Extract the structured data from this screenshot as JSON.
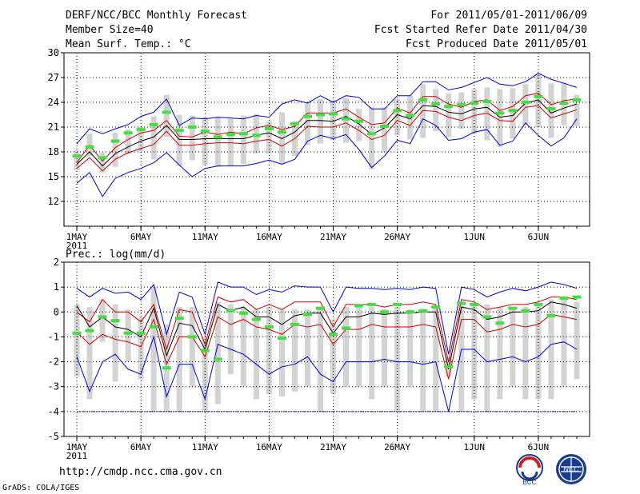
{
  "header": {
    "title": "DERF/NCC/BCC Monthly Forecast",
    "member": "Member Size=40",
    "variable": "Mean Surf. Temp.: °C",
    "period": "For 2011/05/01-2011/06/09",
    "started": "Fcst Started Refer Date 2011/04/30",
    "produced": "Fcst Produced Date 2011/05/01"
  },
  "footer": {
    "url": "http://cmdp.ncc.cma.gov.cn",
    "grads": "GrADS: COLA/IGES",
    "logo_bcc": "BCC",
    "logo_ncc": "NCC"
  },
  "colors": {
    "mean": "#000000",
    "spread": "#cc0000",
    "range": "#0000cc",
    "bar": "#d3d3d3",
    "obs": "#44dd44",
    "grid": "#000000"
  },
  "chart_data": [
    {
      "type": "line",
      "title": "Mean Surf. Temp.: °C",
      "xlabel": "",
      "ylabel": "",
      "x_ticks": [
        1,
        6,
        11,
        16,
        21,
        26,
        32,
        37
      ],
      "x_labels": [
        "1MAY",
        "6MAY",
        "11MAY",
        "16MAY",
        "21MAY",
        "26MAY",
        "1JUN",
        "6JUN"
      ],
      "x_sub": "2011",
      "xlim": [
        0,
        41
      ],
      "ylim": [
        9,
        30
      ],
      "y_ticks": [
        12,
        15,
        18,
        21,
        24,
        27,
        30
      ],
      "y_labels": [
        "12",
        "15",
        "18",
        "21",
        "24",
        "27",
        "30"
      ],
      "x": [
        1,
        2,
        3,
        4,
        5,
        6,
        7,
        8,
        9,
        10,
        11,
        12,
        13,
        14,
        15,
        16,
        17,
        18,
        19,
        20,
        21,
        22,
        23,
        24,
        25,
        26,
        27,
        28,
        29,
        30,
        31,
        32,
        33,
        34,
        35,
        36,
        37,
        38,
        39,
        40
      ],
      "series": [
        {
          "name": "max",
          "values": [
            19.0,
            20.8,
            20.2,
            20.8,
            21.3,
            22.3,
            22.8,
            24.4,
            21.2,
            22.1,
            22.0,
            22.2,
            22.1,
            22.0,
            22.4,
            22.2,
            23.8,
            24.3,
            23.9,
            24.8,
            24.0,
            24.8,
            24.6,
            23.2,
            23.2,
            24.8,
            24.8,
            26.5,
            26.5,
            25.5,
            25.8,
            26.4,
            27.0,
            26.2,
            26.0,
            26.5,
            27.5,
            26.8,
            26.3,
            25.8
          ]
        },
        {
          "name": "upper",
          "values": [
            16.7,
            18.8,
            16.9,
            18.5,
            19.5,
            20.3,
            20.6,
            21.8,
            19.9,
            19.8,
            20.4,
            20.1,
            20.4,
            20.2,
            20.9,
            21.2,
            20.7,
            21.1,
            22.7,
            22.7,
            22.7,
            23.2,
            22.2,
            21.3,
            21.5,
            23.3,
            22.7,
            24.7,
            24.7,
            23.8,
            23.4,
            24.1,
            24.3,
            23.0,
            23.5,
            24.8,
            25.1,
            23.7,
            24.2,
            24.4
          ]
        },
        {
          "name": "mean",
          "values": [
            16.5,
            18.0,
            16.3,
            17.8,
            18.6,
            19.3,
            19.8,
            21.2,
            19.5,
            19.5,
            19.6,
            19.6,
            19.6,
            19.6,
            20.0,
            20.3,
            19.6,
            20.4,
            21.8,
            21.8,
            21.7,
            22.3,
            21.4,
            20.1,
            20.9,
            22.5,
            22.0,
            23.6,
            23.5,
            22.8,
            22.6,
            23.2,
            23.4,
            22.2,
            22.4,
            23.9,
            24.3,
            22.7,
            23.3,
            23.8
          ]
        },
        {
          "name": "lower",
          "values": [
            16.0,
            17.3,
            15.7,
            17.1,
            17.9,
            18.4,
            18.9,
            20.5,
            18.8,
            18.8,
            19.0,
            19.1,
            19.1,
            19.0,
            19.3,
            19.5,
            18.7,
            19.6,
            21.1,
            21.0,
            21.0,
            21.5,
            20.6,
            19.5,
            20.0,
            21.8,
            21.2,
            23.0,
            22.9,
            22.2,
            21.8,
            22.4,
            22.7,
            21.8,
            21.7,
            23.4,
            23.6,
            22.1,
            22.6,
            23.1
          ]
        },
        {
          "name": "min",
          "values": [
            14.2,
            15.5,
            12.6,
            14.8,
            15.5,
            16.0,
            16.7,
            17.9,
            16.4,
            15.0,
            16.0,
            16.3,
            16.3,
            16.3,
            16.6,
            17.0,
            16.5,
            17.1,
            19.3,
            20.0,
            19.6,
            20.1,
            18.3,
            16.1,
            17.5,
            19.4,
            19.0,
            22.0,
            21.2,
            19.4,
            19.6,
            20.4,
            20.7,
            18.8,
            19.3,
            21.5,
            20.0,
            18.7,
            19.7,
            22.0
          ]
        },
        {
          "name": "obs",
          "values": [
            17.5,
            18.6,
            17.3,
            19.3,
            20.3,
            20.7,
            21.3,
            22.8,
            20.6,
            21.0,
            20.5,
            19.8,
            20.1,
            20.2,
            20.0,
            20.8,
            20.4,
            21.4,
            22.3,
            22.5,
            22.6,
            22.0,
            21.7,
            20.2,
            21.1,
            23.0,
            22.4,
            24.3,
            23.8,
            23.5,
            23.7,
            23.9,
            24.1,
            22.7,
            23.0,
            24.0,
            24.7,
            23.2,
            23.9,
            24.3
          ]
        }
      ],
      "bars": {
        "low": [
          15.8,
          17.5,
          15.5,
          16.2,
          17.7,
          18.1,
          17.1,
          19.8,
          16.3,
          17.0,
          16.4,
          16.2,
          16.3,
          16.5,
          17.8,
          17.8,
          16.5,
          17.5,
          18.8,
          19.0,
          19.4,
          19.1,
          19.3,
          15.9,
          17.9,
          20.0,
          19.5,
          19.7,
          20.5,
          19.8,
          20.8,
          20.2,
          19.4,
          18.6,
          19.6,
          21.3,
          21.0,
          19.7,
          21.2,
          21.1
        ],
        "high": [
          18.2,
          20.2,
          17.9,
          20.3,
          20.7,
          21.0,
          22.3,
          24.9,
          22.5,
          22.4,
          22.2,
          22.2,
          22.0,
          22.4,
          22.6,
          21.7,
          22.8,
          21.7,
          24.0,
          24.4,
          24.2,
          24.5,
          23.2,
          23.4,
          23.4,
          24.4,
          24.8,
          26.2,
          25.6,
          25.1,
          25.2,
          25.6,
          25.8,
          25.6,
          25.7,
          26.2,
          27.5,
          26.3,
          26.4,
          24.9
        ]
      }
    },
    {
      "type": "line",
      "title": "Prec.: log(mm/d)",
      "xlabel": "",
      "ylabel": "",
      "x_ticks": [
        1,
        6,
        11,
        16,
        21,
        26,
        32,
        37
      ],
      "x_labels": [
        "1MAY",
        "6MAY",
        "11MAY",
        "16MAY",
        "21MAY",
        "26MAY",
        "1JUN",
        "6JUN"
      ],
      "x_sub": "2011",
      "xlim": [
        0,
        41
      ],
      "ylim": [
        -5,
        2
      ],
      "y_ticks": [
        -5,
        -4,
        -3,
        -2,
        -1,
        0,
        1,
        2
      ],
      "y_labels": [
        "-5",
        "-4",
        "-3",
        "-2",
        "-1",
        "0",
        "1",
        "2"
      ],
      "baseline": -4,
      "x": [
        1,
        2,
        3,
        4,
        5,
        6,
        7,
        8,
        9,
        10,
        11,
        12,
        13,
        14,
        15,
        16,
        17,
        18,
        19,
        20,
        21,
        22,
        23,
        24,
        25,
        26,
        27,
        28,
        29,
        30,
        31,
        32,
        33,
        34,
        35,
        36,
        37,
        38,
        39,
        40
      ],
      "series": [
        {
          "name": "max",
          "values": [
            0.95,
            0.6,
            0.95,
            0.75,
            0.8,
            0.5,
            1.1,
            -0.9,
            0.8,
            0.6,
            -0.9,
            1.2,
            1.0,
            1.0,
            0.7,
            0.9,
            0.8,
            1.05,
            1.0,
            1.0,
            0.0,
            1.0,
            0.95,
            0.95,
            0.9,
            0.95,
            0.9,
            1.0,
            0.95,
            -1.7,
            1.0,
            0.9,
            0.6,
            0.8,
            0.95,
            0.85,
            1.0,
            1.2,
            1.1,
            0.95
          ]
        },
        {
          "name": "upper",
          "values": [
            0.0,
            -0.4,
            0.5,
            0.0,
            0.0,
            -0.4,
            0.3,
            -1.5,
            0.1,
            0.0,
            -1.3,
            0.6,
            0.4,
            0.5,
            0.1,
            0.3,
            0.1,
            0.4,
            0.4,
            0.4,
            -0.6,
            0.3,
            0.3,
            0.3,
            0.2,
            0.3,
            0.3,
            0.4,
            0.3,
            -2.0,
            0.5,
            0.4,
            0.1,
            0.2,
            0.3,
            0.3,
            0.4,
            0.6,
            0.6,
            0.5
          ]
        },
        {
          "name": "mean",
          "values": [
            0.25,
            -0.6,
            -0.2,
            -0.6,
            -0.7,
            -1.0,
            0.15,
            -1.75,
            -0.45,
            -0.55,
            -1.5,
            0.3,
            0.05,
            0.2,
            -0.2,
            -0.2,
            -0.5,
            -0.15,
            -0.05,
            -0.05,
            -0.85,
            -0.2,
            -0.2,
            -0.05,
            -0.1,
            -0.05,
            -0.05,
            0.0,
            0.0,
            -2.3,
            0.2,
            0.1,
            -0.3,
            -0.2,
            0.0,
            0.0,
            0.05,
            0.4,
            0.3,
            0.15
          ]
        },
        {
          "name": "lower",
          "values": [
            -0.8,
            -1.3,
            -0.9,
            -1.1,
            -1.2,
            -1.4,
            -0.3,
            -2.1,
            -1.0,
            -1.0,
            -1.8,
            -0.2,
            -0.5,
            -0.3,
            -0.6,
            -0.7,
            -0.9,
            -0.5,
            -0.6,
            -0.5,
            -1.3,
            -0.7,
            -0.7,
            -0.5,
            -0.6,
            -0.6,
            -0.6,
            -0.5,
            -0.6,
            -2.7,
            -0.3,
            -0.3,
            -0.8,
            -0.7,
            -0.5,
            -0.6,
            -0.5,
            -0.1,
            -0.2,
            -0.3
          ]
        },
        {
          "name": "min",
          "values": [
            -1.8,
            -3.2,
            -2.0,
            -1.7,
            -2.3,
            -2.5,
            -1.0,
            -3.4,
            -2.1,
            -2.1,
            -3.5,
            -1.3,
            -1.5,
            -1.7,
            -2.1,
            -2.5,
            -2.2,
            -2.1,
            -1.8,
            -2.5,
            -2.8,
            -2.0,
            -2.0,
            -2.0,
            -1.9,
            -2.0,
            -2.0,
            -2.1,
            -2.0,
            -4.0,
            -1.5,
            -1.5,
            -2.0,
            -1.9,
            -1.8,
            -2.0,
            -1.8,
            -1.3,
            -1.2,
            -1.5
          ]
        },
        {
          "name": "obs",
          "values": [
            -0.85,
            -0.75,
            -0.2,
            -0.35,
            -0.85,
            -0.85,
            -0.6,
            -2.25,
            -0.25,
            -1.0,
            -1.55,
            -1.9,
            0.05,
            -0.05,
            -0.3,
            -0.6,
            -1.05,
            -0.5,
            -0.1,
            0.15,
            -0.9,
            -0.65,
            0.25,
            0.3,
            0.0,
            0.3,
            0.0,
            0.05,
            0.2,
            -2.2,
            0.35,
            0.3,
            -0.2,
            -0.45,
            0.15,
            0.05,
            0.3,
            -0.15,
            0.55,
            0.6
          ]
        },
        {
          "name": "floor",
          "values": [
            -4,
            -4,
            -4,
            -4,
            -4,
            -4,
            -4,
            -4,
            -4,
            -4,
            -4,
            -4,
            -4,
            -4,
            -4,
            -4,
            -4,
            -4,
            -4,
            -4,
            -4,
            -4,
            -4,
            -4,
            -4,
            -4,
            -4,
            -4,
            -4,
            -4,
            -4,
            -4,
            -4,
            -4,
            -4,
            -4,
            -4,
            -4,
            -4,
            -4
          ]
        }
      ],
      "bars": {
        "low": [
          -2.6,
          -3.5,
          -1.2,
          -2.8,
          -2.0,
          -2.7,
          -4.0,
          -4.0,
          -4.0,
          -3.0,
          -4.0,
          -3.7,
          -2.5,
          -3.0,
          -3.5,
          -3.3,
          -3.4,
          -3.2,
          -3.0,
          -4.0,
          -3.3,
          -3.0,
          -3.0,
          -3.5,
          -3.0,
          -4.0,
          -3.0,
          -4.0,
          -4.0,
          -2.6,
          -4.0,
          -3.5,
          -4.0,
          -3.5,
          -3.0,
          -3.5,
          -3.5,
          -3.5,
          -3.0,
          -2.7
        ],
        "high": [
          0.3,
          0.2,
          0.5,
          0.3,
          0.1,
          -0.2,
          1.0,
          -0.5,
          0.2,
          0.2,
          -1.0,
          0.4,
          0.3,
          0.2,
          0.1,
          0.2,
          0.1,
          0.1,
          0.1,
          0.1,
          -0.3,
          0.2,
          0.3,
          0.2,
          0.1,
          0.2,
          0.1,
          0.1,
          0.2,
          -1.8,
          0.3,
          0.3,
          0.3,
          0.2,
          0.2,
          0.2,
          0.3,
          0.5,
          0.5,
          0.4
        ]
      }
    }
  ]
}
